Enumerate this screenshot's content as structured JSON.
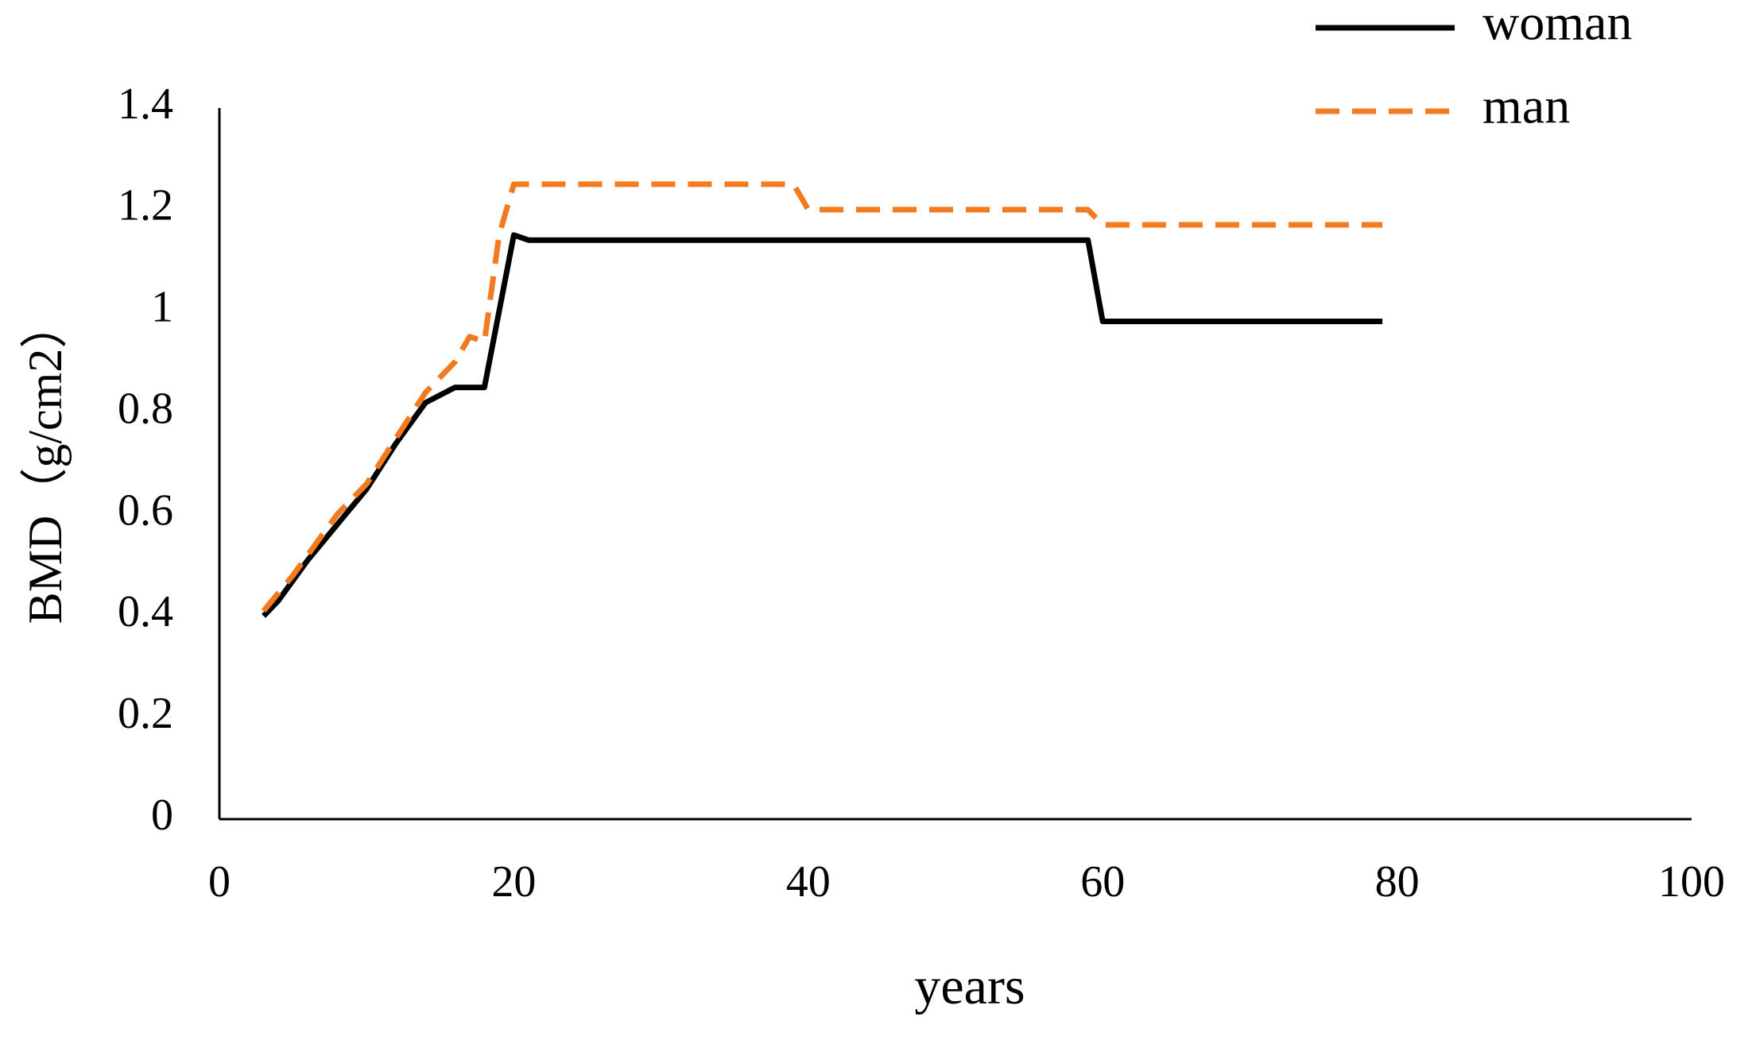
{
  "chart_data": {
    "type": "line",
    "x_label": "years",
    "y_label": "BMD（g/cm2）",
    "xlim": [
      0,
      100
    ],
    "xticks": [
      0,
      20,
      40,
      60,
      80,
      100
    ],
    "ylim": [
      0,
      1.4
    ],
    "yticks": [
      0,
      0.2,
      0.4,
      0.6,
      0.8,
      1,
      1.2,
      1.4
    ],
    "grid": false,
    "legend": "top-right",
    "series": [
      {
        "name": "woman",
        "color": "#000000",
        "style": "solid",
        "x": [
          3,
          4,
          6,
          8,
          10,
          12,
          14,
          16,
          17,
          18,
          19,
          20,
          21,
          40,
          58,
          59,
          60,
          61,
          79
        ],
        "values": [
          0.4,
          0.43,
          0.51,
          0.58,
          0.65,
          0.74,
          0.82,
          0.85,
          0.85,
          0.85,
          1.0,
          1.15,
          1.14,
          1.14,
          1.14,
          1.14,
          0.98,
          0.98,
          0.98
        ]
      },
      {
        "name": "man",
        "color": "#f47a20",
        "style": "dashed",
        "x": [
          3,
          5,
          8,
          10,
          12,
          14,
          16,
          17,
          18,
          19,
          20,
          39,
          40,
          59,
          60,
          79
        ],
        "values": [
          0.41,
          0.48,
          0.6,
          0.66,
          0.75,
          0.84,
          0.9,
          0.95,
          0.94,
          1.15,
          1.25,
          1.25,
          1.2,
          1.2,
          1.17,
          1.17
        ]
      }
    ]
  }
}
